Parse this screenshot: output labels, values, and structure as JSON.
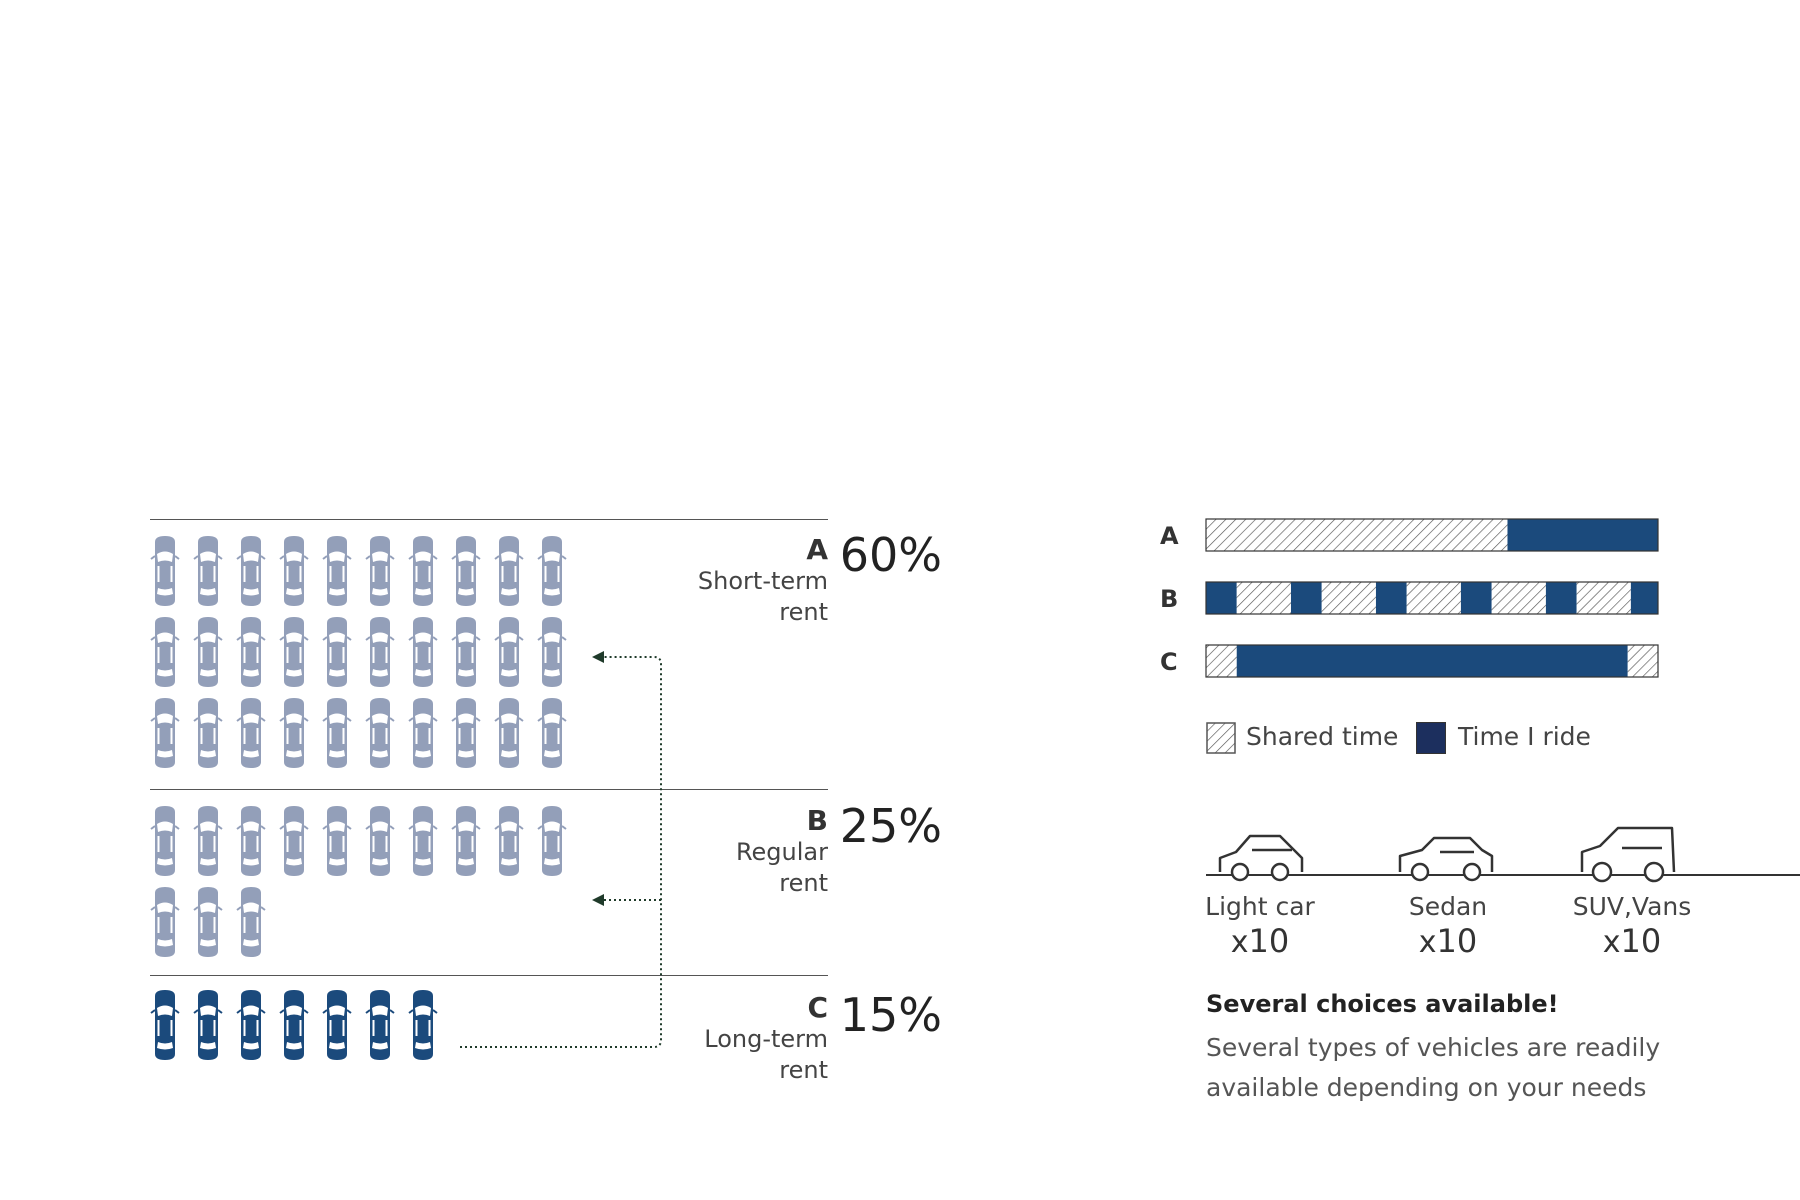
{
  "categories": [
    {
      "letter": "A",
      "label": "Short-term rent",
      "label_line1": "Short-term",
      "label_line2": "rent",
      "percent": "60%",
      "car_count": 30,
      "car_color": "#939fb9"
    },
    {
      "letter": "B",
      "label": "Regular rent",
      "label_line1": "Regular",
      "label_line2": "rent",
      "percent": "25%",
      "car_count": 13,
      "car_color": "#939fb9"
    },
    {
      "letter": "C",
      "label": "Long-term rent",
      "label_line1": "Long-term",
      "label_line2": "rent",
      "percent": "15%",
      "car_count": 7,
      "car_color": "#1b4a7c"
    }
  ],
  "time_bars": [
    {
      "letter": "A",
      "segments": [
        {
          "type": "shared",
          "fraction": 0.667
        },
        {
          "type": "ride",
          "fraction": 0.333
        }
      ]
    },
    {
      "letter": "B",
      "segments": [
        {
          "type": "ride",
          "fraction": 0.068
        },
        {
          "type": "shared",
          "fraction": 0.12
        },
        {
          "type": "ride",
          "fraction": 0.068
        },
        {
          "type": "shared",
          "fraction": 0.12
        },
        {
          "type": "ride",
          "fraction": 0.068
        },
        {
          "type": "shared",
          "fraction": 0.12
        },
        {
          "type": "ride",
          "fraction": 0.068
        },
        {
          "type": "shared",
          "fraction": 0.12
        },
        {
          "type": "ride",
          "fraction": 0.068
        },
        {
          "type": "shared",
          "fraction": 0.12
        },
        {
          "type": "ride",
          "fraction": 0.06
        }
      ]
    },
    {
      "letter": "C",
      "segments": [
        {
          "type": "shared",
          "fraction": 0.068
        },
        {
          "type": "ride",
          "fraction": 0.865
        },
        {
          "type": "shared",
          "fraction": 0.067
        }
      ]
    }
  ],
  "legend": {
    "shared": "Shared time",
    "ride": "Time I ride"
  },
  "vehicles": [
    {
      "name": "Light car",
      "multiplier": "x",
      "count": "10",
      "icon": "light-car-icon"
    },
    {
      "name": "Sedan",
      "multiplier": "x",
      "count": "10",
      "icon": "sedan-icon"
    },
    {
      "name": "SUV,Vans",
      "multiplier": "x",
      "count": "10",
      "icon": "suv-icon"
    }
  ],
  "note": {
    "title": "Several choices available!",
    "body": "Several types of vehicles are readily available depending on your needs"
  },
  "colors": {
    "ride": "#1b4a7c",
    "legend_ride": "#1c2f5e",
    "car_light": "#939fb9",
    "car_dark": "#1b4a7c",
    "arrow": "#1f3a2a"
  }
}
